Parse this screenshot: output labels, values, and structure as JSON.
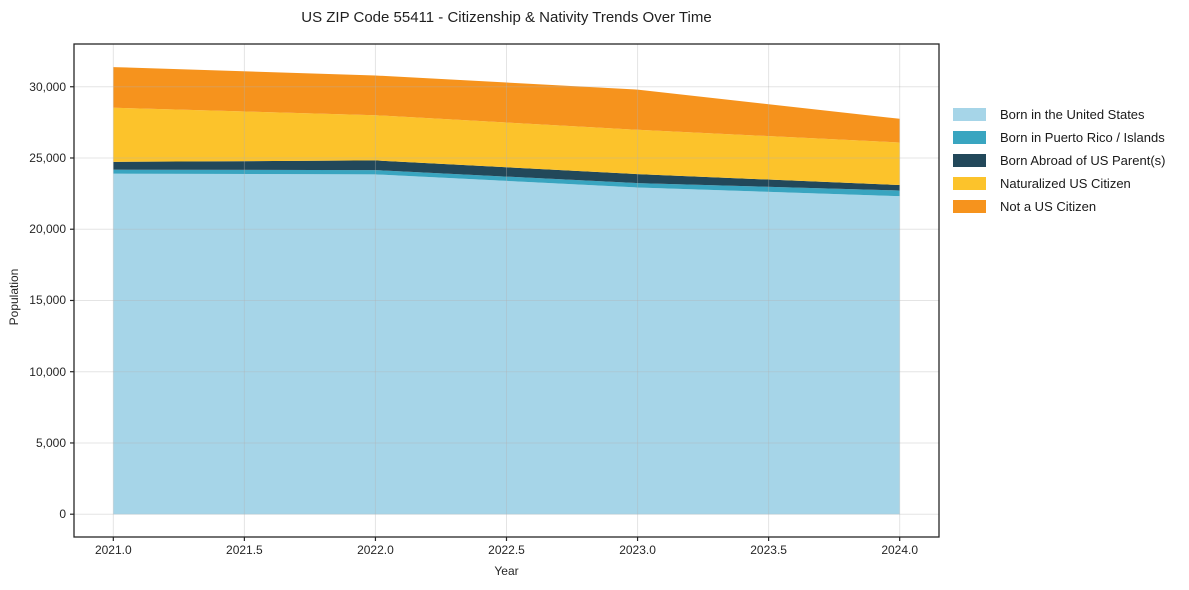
{
  "title": "US ZIP Code 55411 - Citizenship & Nativity Trends Over Time",
  "chart_data": {
    "type": "area",
    "stacked": true,
    "title": "US ZIP Code 55411 - Citizenship & Nativity Trends Over Time",
    "xlabel": "Year",
    "ylabel": "Population",
    "x": [
      2021,
      2022,
      2023,
      2024
    ],
    "series": [
      {
        "name": "Born in the United States",
        "color": "#a6d5e8",
        "values": [
          23900,
          23850,
          22930,
          22320
        ]
      },
      {
        "name": "Born in Puerto Rico / Islands",
        "color": "#39a5c0",
        "values": [
          280,
          300,
          310,
          400
        ]
      },
      {
        "name": "Born Abroad of US Parent(s)",
        "color": "#22485a",
        "values": [
          550,
          680,
          630,
          380
        ]
      },
      {
        "name": "Naturalized US Citizen",
        "color": "#fcc32b",
        "values": [
          3800,
          3170,
          3110,
          2990
        ]
      },
      {
        "name": "Not a US Citizen",
        "color": "#f6931d",
        "values": [
          2850,
          2790,
          2820,
          1660
        ]
      }
    ],
    "totals_by_year": [
      31380,
      30790,
      29800,
      27750
    ],
    "xlim": [
      2020.85,
      2024.15
    ],
    "ylim": [
      -1600,
      33000
    ],
    "x_ticks": {
      "values": [
        2021.0,
        2021.5,
        2022.0,
        2022.5,
        2023.0,
        2023.5,
        2024.0
      ],
      "labels": [
        "2021.0",
        "2021.5",
        "2022.0",
        "2022.5",
        "2023.0",
        "2023.5",
        "2024.0"
      ]
    },
    "y_ticks": {
      "values": [
        0,
        5000,
        10000,
        15000,
        20000,
        25000,
        30000
      ],
      "labels": [
        "0",
        "5,000",
        "10,000",
        "15,000",
        "20,000",
        "25,000",
        "30,000"
      ]
    },
    "grid": true,
    "legend_position": "right"
  },
  "colors": {
    "background": "#ffffff",
    "spine": "#262626",
    "grid": "#b3b3b3",
    "text": "#262626"
  }
}
